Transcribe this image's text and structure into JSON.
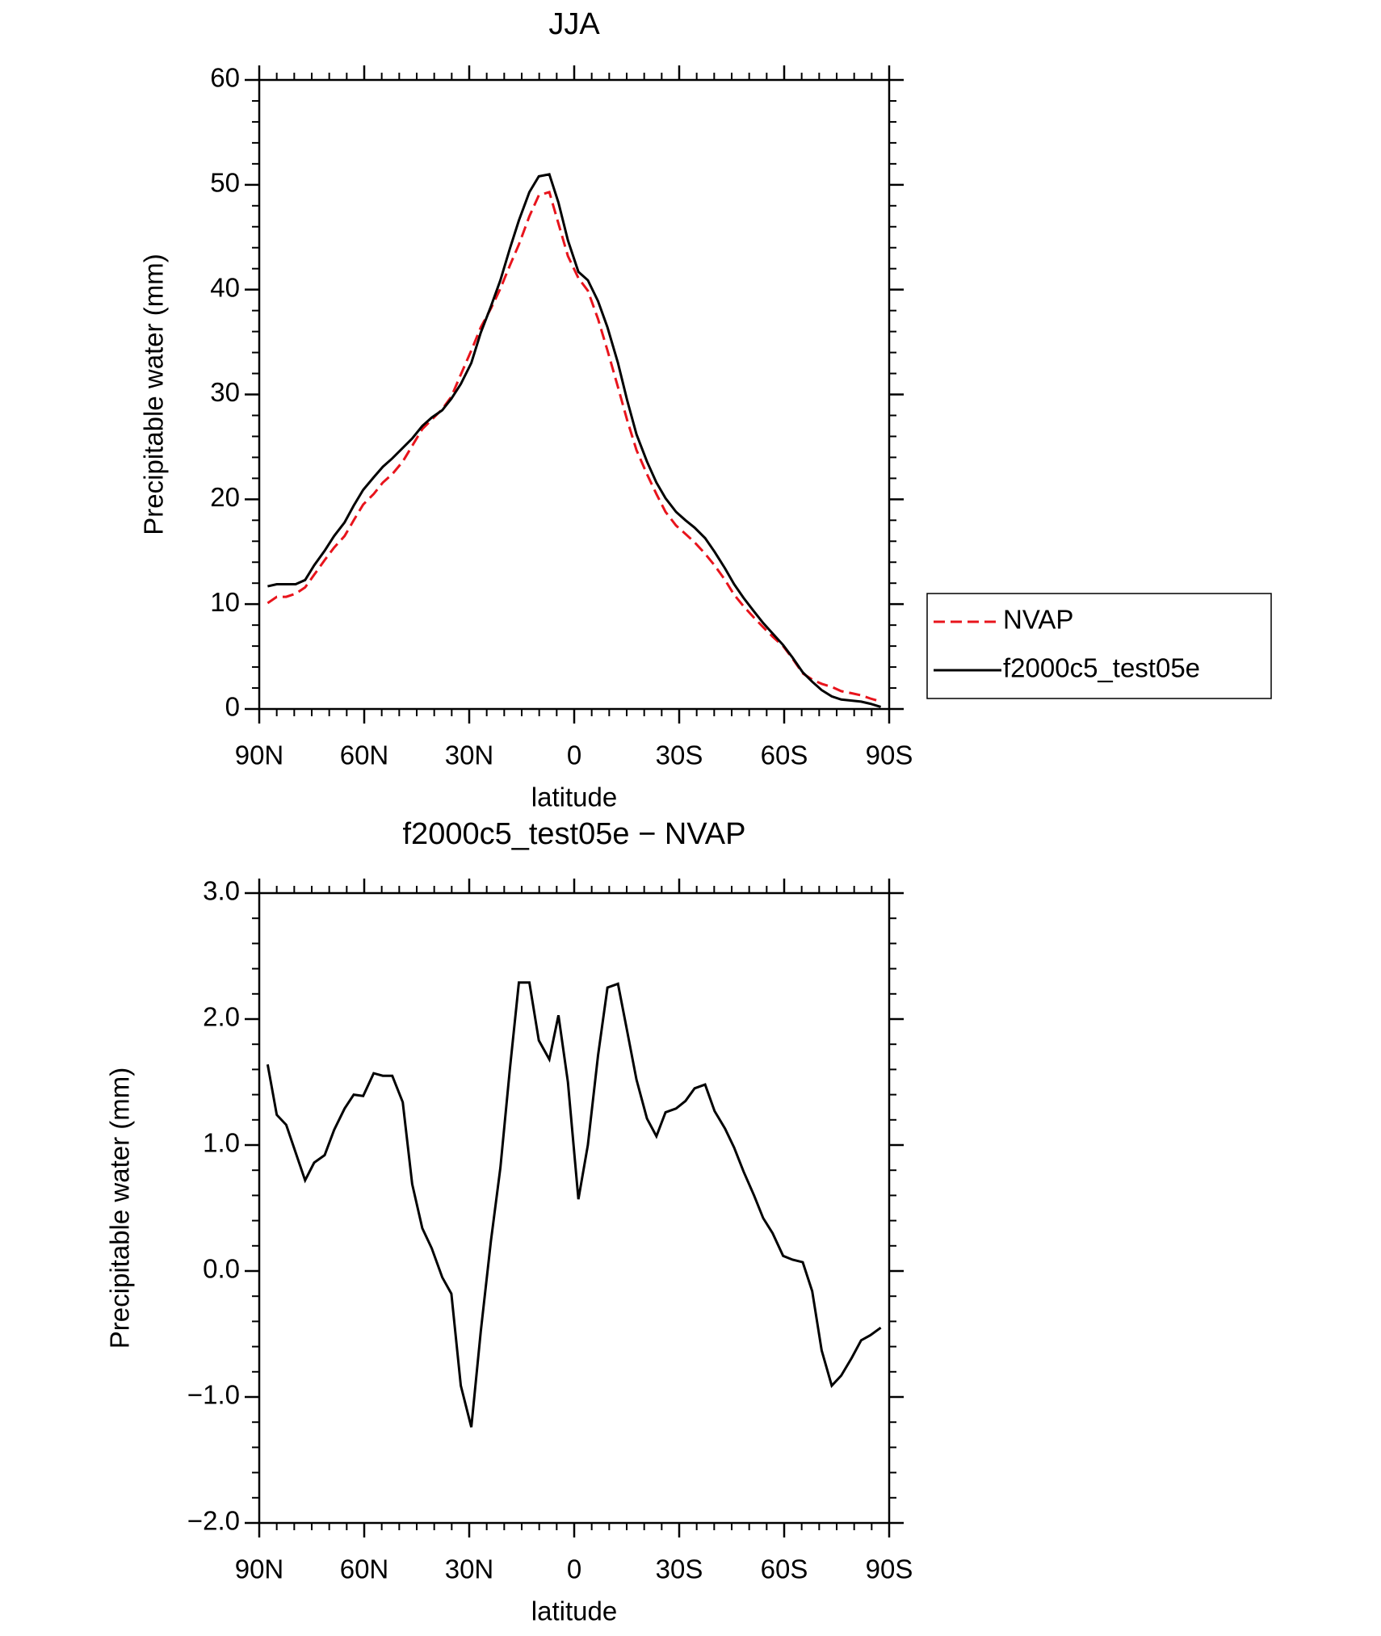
{
  "chart_data": [
    {
      "type": "line",
      "title": "JJA",
      "x_label": "latitude",
      "y_label": "Precipitable water (mm)",
      "x": [
        87.6,
        85,
        82.3,
        79.6,
        76.9,
        74.3,
        71.3,
        68.6,
        65.6,
        63,
        60.3,
        57.3,
        54.7,
        52,
        49,
        46.3,
        43.4,
        40.7,
        37.7,
        35.1,
        32.4,
        29.4,
        26.7,
        23.8,
        21.1,
        18.4,
        15.8,
        12.8,
        10.1,
        7.1,
        4.5,
        1.8,
        -1.2,
        -3.9,
        -6.8,
        -9.5,
        -12.5,
        -15.1,
        -17.8,
        -20.8,
        -23.5,
        -26.1,
        -29.1,
        -31.8,
        -34.4,
        -37.4,
        -40.1,
        -43.1,
        -45.7,
        -48.4,
        -51.4,
        -54,
        -56.7,
        -59.7,
        -62.4,
        -65.3,
        -68,
        -70.7,
        -73.6,
        -76.3,
        -79.3,
        -82,
        -84.6,
        -87.6
      ],
      "series": [
        {
          "name": "NVAP",
          "color": "#e8141c",
          "dash": "dashed",
          "values": [
            10.1,
            10.7,
            10.7,
            11.0,
            11.6,
            12.8,
            14.2,
            15.4,
            16.5,
            18.0,
            19.5,
            20.5,
            21.6,
            22.4,
            23.6,
            25.1,
            26.7,
            27.6,
            28.6,
            29.8,
            31.9,
            34.2,
            36.4,
            38.2,
            40.1,
            42.3,
            44.3,
            47.0,
            49.0,
            49.3,
            46.3,
            43.2,
            41.1,
            39.9,
            37.2,
            34.2,
            30.7,
            27.6,
            24.7,
            22.4,
            20.5,
            18.8,
            17.5,
            16.7,
            15.9,
            14.8,
            13.7,
            12.3,
            10.9,
            9.8,
            8.7,
            7.8,
            6.9,
            6.0,
            4.8,
            3.4,
            2.8,
            2.4,
            2.1,
            1.7,
            1.5,
            1.3,
            1.0,
            0.7
          ]
        },
        {
          "name": "f2000c5_test05e",
          "color": "#000000",
          "dash": "solid",
          "values": [
            11.7,
            11.9,
            11.9,
            11.9,
            12.3,
            13.7,
            15.1,
            16.5,
            17.8,
            19.4,
            20.9,
            22.1,
            23.1,
            23.9,
            24.9,
            25.8,
            27.0,
            27.8,
            28.5,
            29.6,
            31.0,
            33.0,
            35.9,
            38.4,
            40.9,
            43.9,
            46.6,
            49.3,
            50.8,
            51.0,
            48.3,
            44.7,
            41.7,
            40.9,
            38.9,
            36.4,
            33.0,
            29.5,
            26.2,
            23.6,
            21.6,
            20.1,
            18.8,
            18.0,
            17.3,
            16.3,
            15.0,
            13.4,
            11.9,
            10.6,
            9.3,
            8.2,
            7.2,
            6.1,
            4.9,
            3.5,
            2.6,
            1.8,
            1.2,
            0.9,
            0.8,
            0.7,
            0.5,
            0.2
          ]
        }
      ],
      "xlim": [
        90,
        -90
      ],
      "xticks": [
        {
          "value": 90,
          "label": "90N"
        },
        {
          "value": 60,
          "label": "60N"
        },
        {
          "value": 30,
          "label": "30N"
        },
        0,
        {
          "value": -30,
          "label": "30S"
        },
        {
          "value": -60,
          "label": "60S"
        },
        {
          "value": -90,
          "label": "90S"
        }
      ],
      "ylim": [
        0,
        60
      ],
      "yticks": [
        0,
        10,
        20,
        30,
        40,
        50,
        60
      ],
      "legend": "right"
    },
    {
      "type": "line",
      "title": "f2000c5_test05e − NVAP",
      "x_label": "latitude",
      "y_label": "Precipitable water (mm)",
      "x": [
        87.6,
        85,
        82.3,
        79.6,
        76.9,
        74.3,
        71.3,
        68.6,
        65.6,
        63,
        60.3,
        57.3,
        54.7,
        52,
        49,
        46.3,
        43.4,
        40.7,
        37.7,
        35.1,
        32.4,
        29.4,
        26.7,
        23.8,
        21.1,
        18.4,
        15.8,
        12.8,
        10.1,
        7.1,
        4.5,
        1.8,
        -1.2,
        -3.9,
        -6.8,
        -9.5,
        -12.5,
        -15.1,
        -17.8,
        -20.8,
        -23.5,
        -26.1,
        -29.1,
        -31.8,
        -34.4,
        -37.4,
        -40.1,
        -43.1,
        -45.7,
        -48.4,
        -51.4,
        -54,
        -56.7,
        -59.7,
        -62.4,
        -65.3,
        -68,
        -70.7,
        -73.6,
        -76.3,
        -79.3,
        -82,
        -84.6,
        -87.6
      ],
      "series": [
        {
          "color": "#000000",
          "dash": "solid",
          "values": [
            1.64,
            1.24,
            1.16,
            0.94,
            0.72,
            0.86,
            0.92,
            1.12,
            1.29,
            1.4,
            1.39,
            1.57,
            1.55,
            1.55,
            1.34,
            0.69,
            0.34,
            0.18,
            -0.05,
            -0.18,
            -0.91,
            -1.24,
            -0.48,
            0.24,
            0.82,
            1.6,
            2.29,
            2.29,
            1.83,
            1.68,
            2.03,
            1.5,
            0.57,
            1.0,
            1.71,
            2.25,
            2.28,
            1.91,
            1.52,
            1.21,
            1.07,
            1.26,
            1.29,
            1.35,
            1.45,
            1.48,
            1.27,
            1.13,
            0.98,
            0.79,
            0.6,
            0.42,
            0.3,
            0.12,
            0.09,
            0.07,
            -0.16,
            -0.63,
            -0.91,
            -0.83,
            -0.69,
            -0.55,
            -0.51,
            -0.45
          ]
        }
      ],
      "xlim": [
        90,
        -90
      ],
      "xticks": [
        {
          "value": 90,
          "label": "90N"
        },
        {
          "value": 60,
          "label": "60N"
        },
        {
          "value": 30,
          "label": "30N"
        },
        0,
        {
          "value": -30,
          "label": "30S"
        },
        {
          "value": -60,
          "label": "60S"
        },
        {
          "value": -90,
          "label": "90S"
        }
      ],
      "ylim": [
        -2,
        3
      ],
      "yticks": [
        {
          "value": -2,
          "label": "−2.0"
        },
        {
          "value": -1,
          "label": "−1.0"
        },
        {
          "value": 0,
          "label": "0.0"
        },
        {
          "value": 1,
          "label": "1.0"
        },
        {
          "value": 2,
          "label": "2.0"
        },
        {
          "value": 3,
          "label": "3.0"
        }
      ]
    }
  ]
}
